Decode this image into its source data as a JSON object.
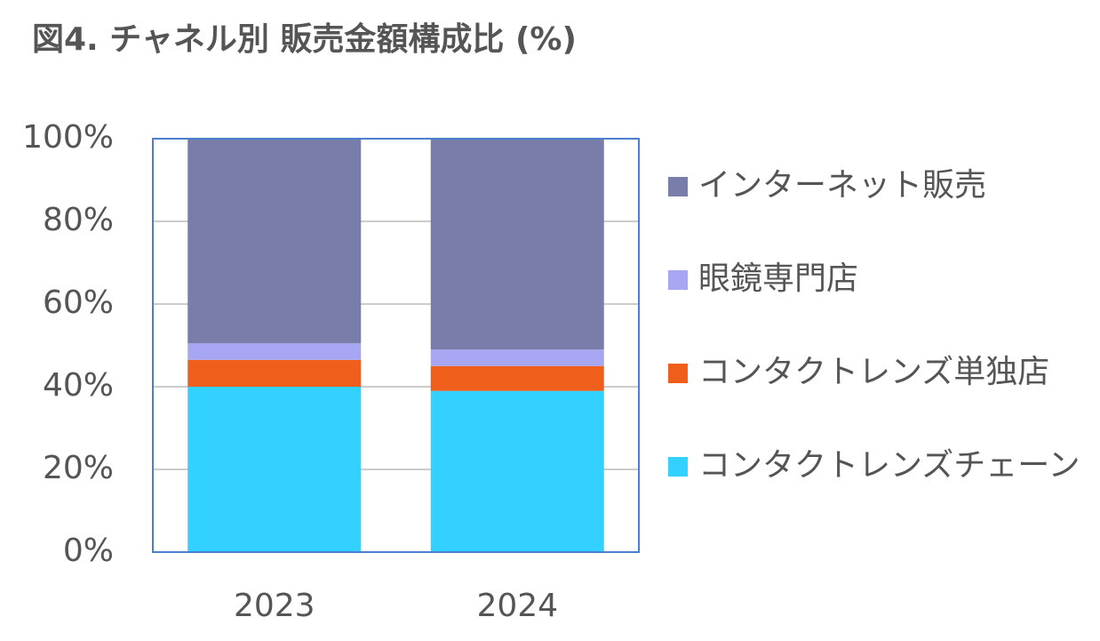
{
  "chart_data": {
    "type": "stacked_bar",
    "title": "図4. チャネル別 販売金額構成比 (%)",
    "categories": [
      "2023",
      "2024"
    ],
    "series": [
      {
        "name": "コンタクトレンズチェーン",
        "color": "#33d1ff",
        "values": [
          40,
          39
        ]
      },
      {
        "name": "コンタクトレンズ単独店",
        "color": "#f05e1c",
        "values": [
          6.5,
          6
        ]
      },
      {
        "name": "眼鏡専門店",
        "color": "#a6a6f2",
        "values": [
          4,
          4
        ]
      },
      {
        "name": "インターネット販売",
        "color": "#787ea9",
        "values": [
          49.5,
          51
        ]
      }
    ],
    "ylim": [
      0,
      100
    ],
    "yticks": [
      {
        "value": 0,
        "label": "0%"
      },
      {
        "value": 20,
        "label": "20%"
      },
      {
        "value": 40,
        "label": "40%"
      },
      {
        "value": 60,
        "label": "60%"
      },
      {
        "value": 80,
        "label": "80%"
      },
      {
        "value": 100,
        "label": "100%"
      }
    ],
    "grid": true,
    "legend": "right"
  }
}
